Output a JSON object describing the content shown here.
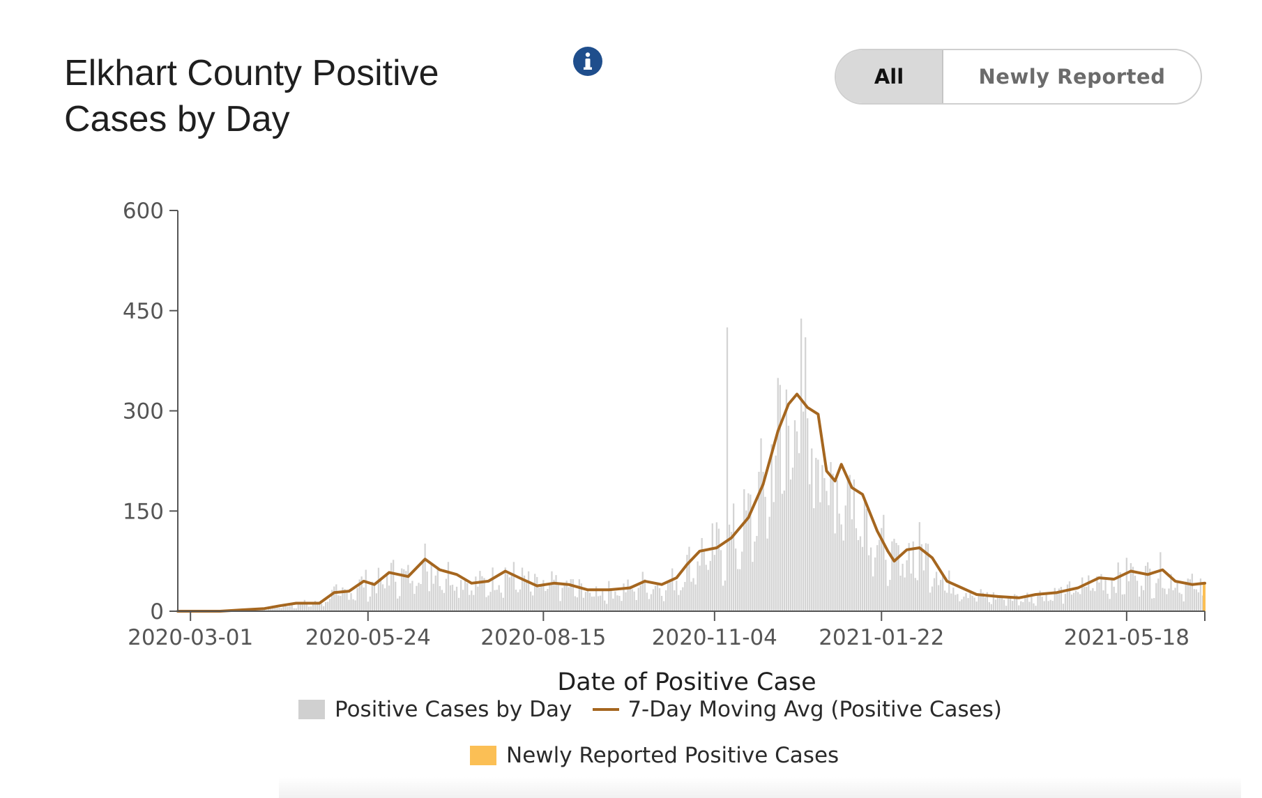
{
  "header": {
    "title": "Elkhart County Positive Cases by Day",
    "info_icon": "info-icon"
  },
  "toggle": {
    "all_label": "All",
    "newly_label": "Newly Reported",
    "selected": "All"
  },
  "colors": {
    "bars": "#d4d4d4",
    "avg_line": "#a5661f",
    "newly_reported": "#fbbf55",
    "info_icon_bg": "#1f4e8c",
    "axis": "#555555"
  },
  "chart_data": {
    "type": "bar",
    "title": "Elkhart County Positive Cases by Day",
    "xlabel": "Date of Positive Case",
    "ylabel": "",
    "ylim": [
      0,
      600
    ],
    "y_ticks": [
      0,
      150,
      300,
      450,
      600
    ],
    "x_range": [
      "2020-02-24",
      "2021-06-24"
    ],
    "x_ticks": [
      "2020-03-01",
      "2020-05-24",
      "2020-08-15",
      "2020-11-04",
      "2021-01-22",
      "2021-05-18"
    ],
    "grid": false,
    "legend": {
      "placement": "bottom",
      "entries": [
        "Positive Cases by Day",
        "7-Day Moving Avg (Positive Cases)",
        "Newly Reported Positive Cases"
      ]
    },
    "series": [
      {
        "name": "Positive Cases by Day",
        "kind": "bar",
        "approx_from_avg": true,
        "peak": {
          "date": "2020-11-10",
          "value": 425
        }
      },
      {
        "name": "7-Day Moving Avg (Positive Cases)",
        "kind": "line",
        "points": [
          [
            "2020-02-24",
            0
          ],
          [
            "2020-03-15",
            0
          ],
          [
            "2020-03-25",
            2
          ],
          [
            "2020-04-05",
            4
          ],
          [
            "2020-04-12",
            8
          ],
          [
            "2020-04-20",
            12
          ],
          [
            "2020-05-01",
            12
          ],
          [
            "2020-05-08",
            28
          ],
          [
            "2020-05-15",
            30
          ],
          [
            "2020-05-22",
            45
          ],
          [
            "2020-05-27",
            40
          ],
          [
            "2020-06-03",
            58
          ],
          [
            "2020-06-12",
            52
          ],
          [
            "2020-06-20",
            78
          ],
          [
            "2020-06-27",
            62
          ],
          [
            "2020-07-05",
            55
          ],
          [
            "2020-07-12",
            42
          ],
          [
            "2020-07-20",
            45
          ],
          [
            "2020-07-28",
            60
          ],
          [
            "2020-08-05",
            48
          ],
          [
            "2020-08-12",
            38
          ],
          [
            "2020-08-20",
            42
          ],
          [
            "2020-08-27",
            40
          ],
          [
            "2020-09-05",
            32
          ],
          [
            "2020-09-15",
            32
          ],
          [
            "2020-09-25",
            35
          ],
          [
            "2020-10-02",
            45
          ],
          [
            "2020-10-10",
            40
          ],
          [
            "2020-10-17",
            50
          ],
          [
            "2020-10-22",
            70
          ],
          [
            "2020-10-28",
            90
          ],
          [
            "2020-11-05",
            95
          ],
          [
            "2020-11-12",
            110
          ],
          [
            "2020-11-20",
            140
          ],
          [
            "2020-11-27",
            190
          ],
          [
            "2020-12-04",
            270
          ],
          [
            "2020-12-09",
            310
          ],
          [
            "2020-12-13",
            325
          ],
          [
            "2020-12-18",
            305
          ],
          [
            "2020-12-23",
            295
          ],
          [
            "2020-12-27",
            210
          ],
          [
            "2020-12-31",
            195
          ],
          [
            "2021-01-03",
            220
          ],
          [
            "2021-01-08",
            185
          ],
          [
            "2021-01-13",
            175
          ],
          [
            "2021-01-20",
            120
          ],
          [
            "2021-01-25",
            90
          ],
          [
            "2021-01-28",
            75
          ],
          [
            "2021-02-03",
            92
          ],
          [
            "2021-02-09",
            95
          ],
          [
            "2021-02-15",
            80
          ],
          [
            "2021-02-22",
            45
          ],
          [
            "2021-03-01",
            35
          ],
          [
            "2021-03-08",
            25
          ],
          [
            "2021-03-18",
            22
          ],
          [
            "2021-03-28",
            20
          ],
          [
            "2021-04-05",
            25
          ],
          [
            "2021-04-15",
            28
          ],
          [
            "2021-04-25",
            35
          ],
          [
            "2021-05-05",
            50
          ],
          [
            "2021-05-12",
            48
          ],
          [
            "2021-05-20",
            60
          ],
          [
            "2021-05-28",
            55
          ],
          [
            "2021-06-04",
            62
          ],
          [
            "2021-06-10",
            45
          ],
          [
            "2021-06-18",
            40
          ],
          [
            "2021-06-24",
            42
          ]
        ]
      },
      {
        "name": "Newly Reported Positive Cases",
        "kind": "bar",
        "points": [
          [
            "2021-06-24",
            42
          ]
        ]
      }
    ]
  }
}
